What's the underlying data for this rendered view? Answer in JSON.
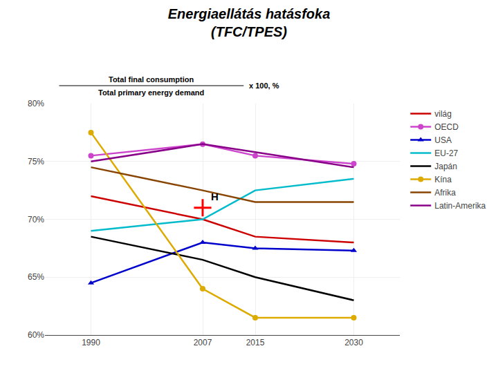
{
  "chart_data": {
    "type": "line",
    "title": [
      "Energiaellátás hatásfoka",
      "(TFC/TPES)"
    ],
    "subtitle": {
      "numerator": "Total final consumption",
      "denominator": "Total primary energy demand",
      "suffix": "x 100, %"
    },
    "x": [
      1990,
      2007,
      2015,
      2030
    ],
    "series": [
      {
        "name": "világ",
        "color": "#cc0000",
        "values": [
          72.0,
          70.0,
          68.5,
          68.0
        ]
      },
      {
        "name": "OECD",
        "color": "#cc44cc",
        "marker": "circle",
        "values": [
          75.5,
          76.5,
          75.5,
          74.8
        ]
      },
      {
        "name": "USA",
        "color": "#0000cc",
        "marker": "triangle-up",
        "values": [
          64.5,
          68.0,
          67.5,
          67.3
        ]
      },
      {
        "name": "EU-27",
        "color": "#00bbcc",
        "values": [
          69.0,
          70.0,
          72.5,
          73.5
        ]
      },
      {
        "name": "Japán",
        "color": "#000000",
        "values": [
          68.5,
          66.5,
          65.0,
          63.0
        ]
      },
      {
        "name": "Kína",
        "color": "#ddaa00",
        "marker": "circle",
        "values": [
          77.5,
          64.0,
          61.5,
          61.5
        ]
      },
      {
        "name": "Afrika",
        "color": "#884400",
        "values": [
          74.5,
          72.5,
          71.5,
          71.5
        ]
      },
      {
        "name": "Latin-Amerika",
        "color": "#880088",
        "values": [
          75.0,
          76.5,
          75.8,
          74.5
        ]
      }
    ],
    "annotations": [
      {
        "text": "H",
        "x": 2007,
        "y": 71.0,
        "color": "#ff0000",
        "marker": "plus"
      }
    ],
    "xlim": [
      1983,
      2037
    ],
    "xticks": [
      1990,
      2007,
      2015,
      2030
    ],
    "ylim": [
      60,
      80
    ],
    "yticks": [
      {
        "value": 60,
        "label": "60%"
      },
      {
        "value": 65,
        "label": "65%"
      },
      {
        "value": 70,
        "label": "70%"
      },
      {
        "value": 75,
        "label": "75%"
      },
      {
        "value": 80,
        "label": "80%"
      }
    ],
    "grid": true,
    "legend": "right"
  }
}
